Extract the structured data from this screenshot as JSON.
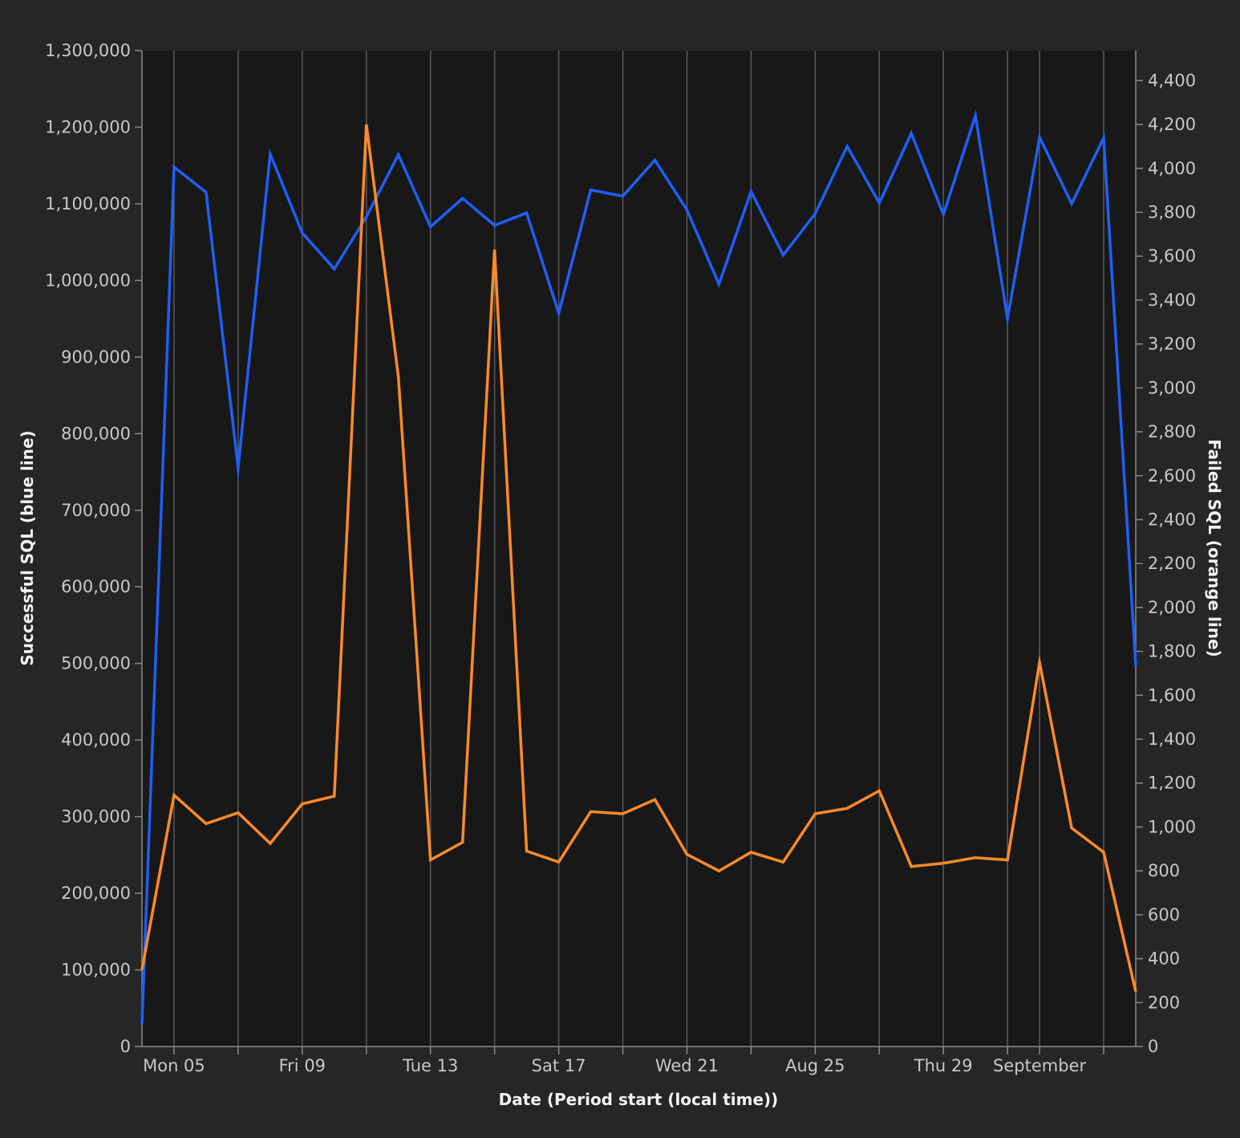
{
  "chart_data": {
    "type": "line",
    "xlabel": "Date (Period start (local time))",
    "ylabel_left": "Successful SQL (blue line)",
    "ylabel_right": "Failed SQL (orange line)",
    "x_start": "2024-08-04",
    "x_end": "2024-09-04",
    "x_ticks": [
      {
        "date": "2024-08-05",
        "label": "Mon 05"
      },
      {
        "date": "2024-08-07",
        "label": ""
      },
      {
        "date": "2024-08-09",
        "label": "Fri 09"
      },
      {
        "date": "2024-08-11",
        "label": ""
      },
      {
        "date": "2024-08-13",
        "label": "Tue 13"
      },
      {
        "date": "2024-08-15",
        "label": ""
      },
      {
        "date": "2024-08-17",
        "label": "Sat 17"
      },
      {
        "date": "2024-08-19",
        "label": ""
      },
      {
        "date": "2024-08-21",
        "label": "Wed 21"
      },
      {
        "date": "2024-08-23",
        "label": ""
      },
      {
        "date": "2024-08-25",
        "label": "Aug 25"
      },
      {
        "date": "2024-08-27",
        "label": ""
      },
      {
        "date": "2024-08-29",
        "label": "Thu 29"
      },
      {
        "date": "2024-08-31",
        "label": ""
      },
      {
        "date": "2024-09-01",
        "label": "September"
      },
      {
        "date": "2024-09-03",
        "label": ""
      }
    ],
    "ylim_left": [
      0,
      1300000
    ],
    "yticks_left": [
      0,
      100000,
      200000,
      300000,
      400000,
      500000,
      600000,
      700000,
      800000,
      900000,
      1000000,
      1100000,
      1200000,
      1300000
    ],
    "ytick_labels_left": [
      "0",
      "100,000",
      "200,000",
      "300,000",
      "400,000",
      "500,000",
      "600,000",
      "700,000",
      "800,000",
      "900,000",
      "1,000,000",
      "1,100,000",
      "1,200,000",
      "1,300,000"
    ],
    "ylim_right": [
      0,
      4500
    ],
    "yticks_right": [
      0,
      200,
      400,
      600,
      800,
      1000,
      1200,
      1400,
      1600,
      1800,
      2000,
      2200,
      2400,
      2600,
      2800,
      3000,
      3200,
      3400,
      3600,
      3800,
      4000,
      4200,
      4400
    ],
    "ytick_labels_right": [
      "0",
      "200",
      "400",
      "600",
      "800",
      "1,000",
      "1,200",
      "1,400",
      "1,600",
      "1,800",
      "2,000",
      "2,200",
      "2,400",
      "2,600",
      "2,800",
      "3,000",
      "3,200",
      "3,400",
      "3,600",
      "3,800",
      "4,000",
      "4,200",
      "4,400"
    ],
    "grid": "vertical",
    "series": [
      {
        "axis": "left",
        "color": "#1f5ff5",
        "x": [
          "2024-08-04",
          "2024-08-05",
          "2024-08-06",
          "2024-08-07",
          "2024-08-08",
          "2024-08-09",
          "2024-08-10",
          "2024-08-11",
          "2024-08-12",
          "2024-08-13",
          "2024-08-14",
          "2024-08-15",
          "2024-08-16",
          "2024-08-17",
          "2024-08-18",
          "2024-08-19",
          "2024-08-20",
          "2024-08-21",
          "2024-08-22",
          "2024-08-23",
          "2024-08-24",
          "2024-08-25",
          "2024-08-26",
          "2024-08-27",
          "2024-08-28",
          "2024-08-29",
          "2024-08-30",
          "2024-08-31",
          "2024-09-01",
          "2024-09-02",
          "2024-09-03",
          "2024-09-04"
        ],
        "y": [
          30000,
          1148000,
          1115000,
          755000,
          1165000,
          1062000,
          1015000,
          1083000,
          1164000,
          1070000,
          1107000,
          1072000,
          1088000,
          957000,
          1118000,
          1110000,
          1157000,
          1092000,
          995000,
          1116000,
          1033000,
          1087000,
          1175000,
          1101000,
          1192000,
          1086000,
          1215000,
          950000,
          1187000,
          1100000,
          1186000,
          497000
        ]
      },
      {
        "axis": "right",
        "color": "#ff8a2a",
        "x": [
          "2024-08-04",
          "2024-08-05",
          "2024-08-06",
          "2024-08-07",
          "2024-08-08",
          "2024-08-09",
          "2024-08-10",
          "2024-08-11",
          "2024-08-12",
          "2024-08-13",
          "2024-08-14",
          "2024-08-15",
          "2024-08-16",
          "2024-08-17",
          "2024-08-18",
          "2024-08-19",
          "2024-08-20",
          "2024-08-21",
          "2024-08-22",
          "2024-08-23",
          "2024-08-24",
          "2024-08-25",
          "2024-08-26",
          "2024-08-27",
          "2024-08-28",
          "2024-08-29",
          "2024-08-30",
          "2024-08-31",
          "2024-09-01",
          "2024-09-02",
          "2024-09-03",
          "2024-09-04"
        ],
        "y": [
          350,
          1145,
          1015,
          1065,
          925,
          1105,
          1140,
          4200,
          3050,
          850,
          930,
          3630,
          890,
          840,
          1070,
          1060,
          1125,
          875,
          800,
          885,
          840,
          1060,
          1085,
          1165,
          820,
          835,
          860,
          850,
          1750,
          995,
          885,
          250
        ]
      }
    ]
  },
  "colors": {
    "page_background": "#262626",
    "plot_background": "#181818",
    "gridline": "#5a5a5a",
    "axis": "#8a8a8a"
  }
}
